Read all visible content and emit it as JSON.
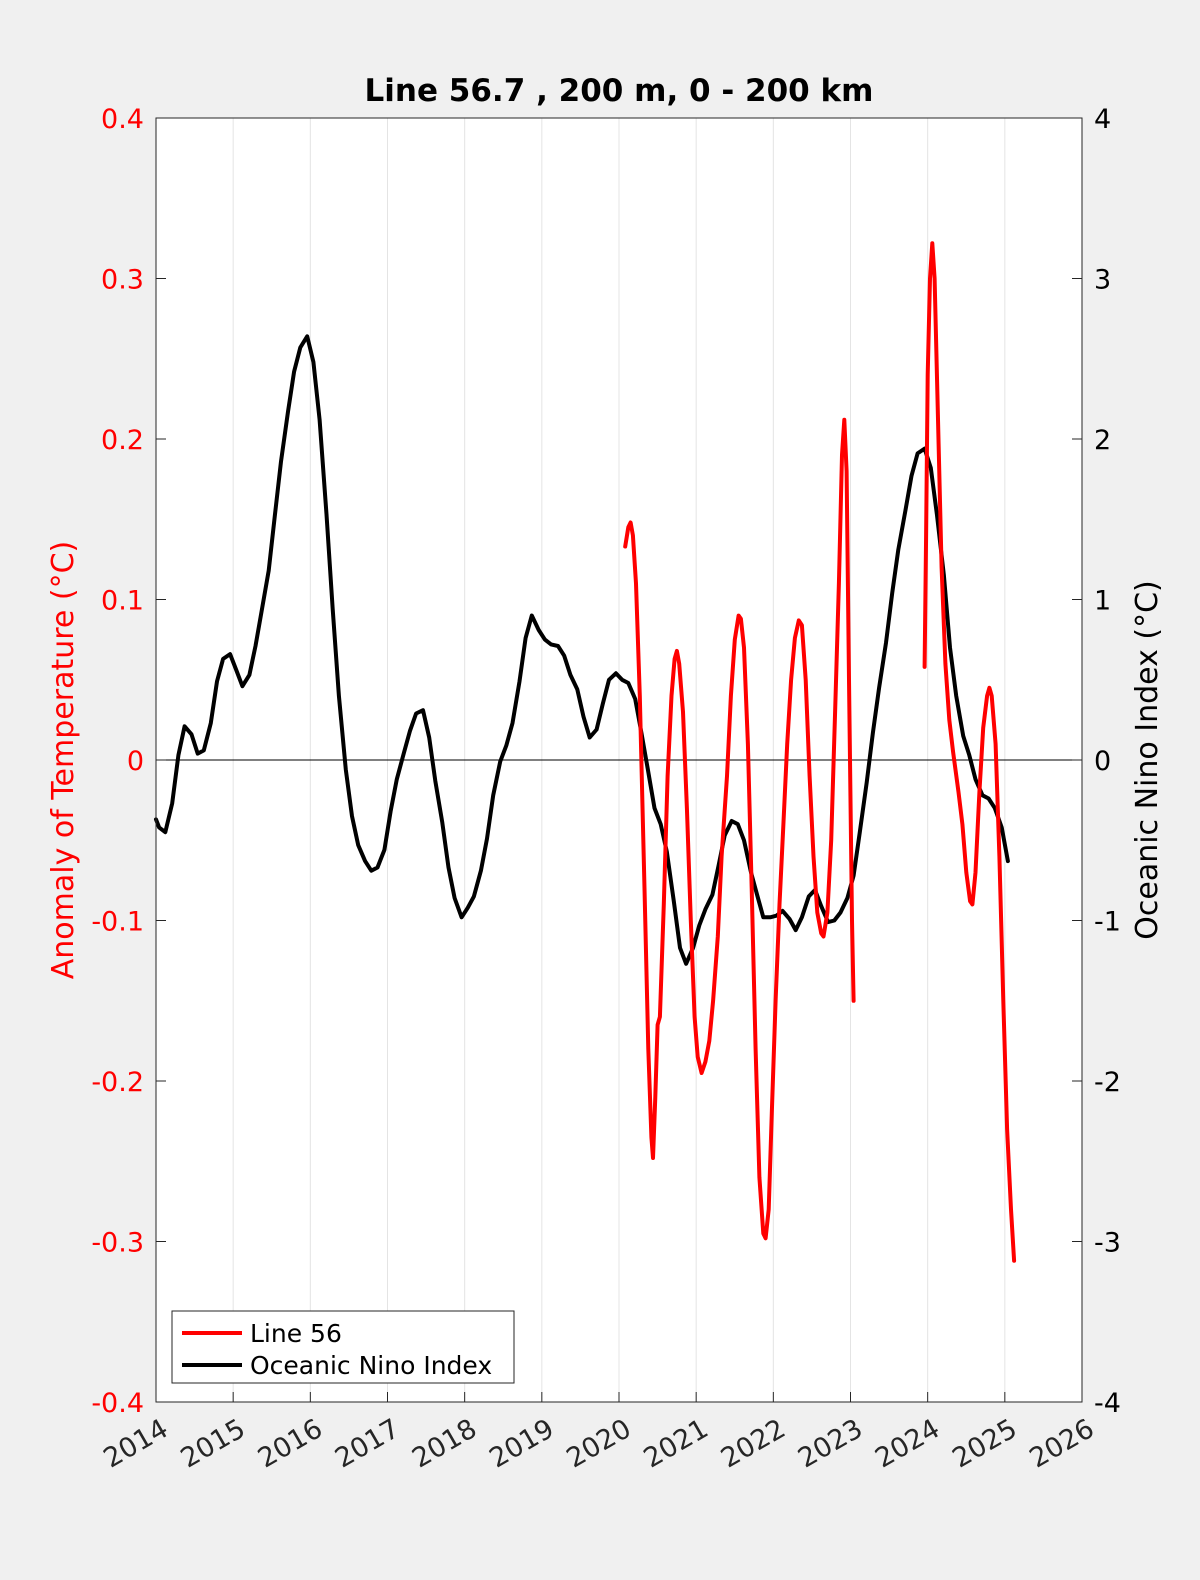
{
  "chart_data": {
    "type": "line",
    "title": "Line 56.7 , 200 m, 0 - 200 km",
    "xlim": [
      2014,
      2026
    ],
    "x_ticks": [
      "2014",
      "2015",
      "2016",
      "2017",
      "2018",
      "2019",
      "2020",
      "2021",
      "2022",
      "2023",
      "2024",
      "2025",
      "2026"
    ],
    "y_left": {
      "label": "Anomaly of Temperature (°C)",
      "lim": [
        -0.4,
        0.4
      ],
      "ticks": [
        "-0.4",
        "-0.3",
        "-0.2",
        "-0.1",
        "0",
        "0.1",
        "0.2",
        "0.3",
        "0.4"
      ],
      "color": "#ff0000"
    },
    "y_right": {
      "label": "Oceanic Nino Index (°C)",
      "lim": [
        -4,
        4
      ],
      "ticks": [
        "-4",
        "-3",
        "-2",
        "-1",
        "0",
        "1",
        "2",
        "3",
        "4"
      ],
      "color": "#000000"
    },
    "grid": "vertical",
    "zero_line": true,
    "legend": {
      "position": "bottom-left",
      "entries": [
        "Line 56",
        "Oceanic Nino Index"
      ]
    },
    "series": [
      {
        "name": "Line 56",
        "axis": "left",
        "color": "#ff0000",
        "segments": [
          [
            [
              2020.08,
              0.133
            ],
            [
              2020.12,
              0.145
            ],
            [
              2020.15,
              0.148
            ],
            [
              2020.18,
              0.14
            ],
            [
              2020.22,
              0.11
            ],
            [
              2020.27,
              0.04
            ],
            [
              2020.33,
              -0.08
            ],
            [
              2020.38,
              -0.18
            ],
            [
              2020.42,
              -0.235
            ],
            [
              2020.44,
              -0.248
            ],
            [
              2020.47,
              -0.21
            ],
            [
              2020.5,
              -0.165
            ],
            [
              2020.53,
              -0.16
            ],
            [
              2020.58,
              -0.09
            ],
            [
              2020.63,
              -0.01
            ],
            [
              2020.68,
              0.04
            ],
            [
              2020.72,
              0.063
            ],
            [
              2020.75,
              0.068
            ],
            [
              2020.78,
              0.06
            ],
            [
              2020.83,
              0.03
            ],
            [
              2020.88,
              -0.03
            ],
            [
              2020.93,
              -0.1
            ],
            [
              2020.98,
              -0.16
            ],
            [
              2021.02,
              -0.185
            ],
            [
              2021.07,
              -0.195
            ],
            [
              2021.12,
              -0.188
            ],
            [
              2021.17,
              -0.175
            ],
            [
              2021.22,
              -0.15
            ],
            [
              2021.28,
              -0.11
            ],
            [
              2021.33,
              -0.06
            ],
            [
              2021.4,
              -0.01
            ],
            [
              2021.45,
              0.04
            ],
            [
              2021.5,
              0.075
            ],
            [
              2021.55,
              0.09
            ],
            [
              2021.58,
              0.088
            ],
            [
              2021.62,
              0.07
            ],
            [
              2021.67,
              0.01
            ],
            [
              2021.72,
              -0.08
            ],
            [
              2021.77,
              -0.18
            ],
            [
              2021.82,
              -0.26
            ],
            [
              2021.87,
              -0.295
            ],
            [
              2021.9,
              -0.298
            ],
            [
              2021.94,
              -0.28
            ],
            [
              2021.98,
              -0.22
            ],
            [
              2022.03,
              -0.15
            ],
            [
              2022.08,
              -0.09
            ],
            [
              2022.13,
              -0.04
            ],
            [
              2022.18,
              0.01
            ],
            [
              2022.23,
              0.05
            ],
            [
              2022.28,
              0.076
            ],
            [
              2022.33,
              0.087
            ],
            [
              2022.37,
              0.084
            ],
            [
              2022.42,
              0.05
            ],
            [
              2022.47,
              -0.01
            ],
            [
              2022.52,
              -0.06
            ],
            [
              2022.57,
              -0.095
            ],
            [
              2022.62,
              -0.108
            ],
            [
              2022.65,
              -0.11
            ],
            [
              2022.7,
              -0.095
            ],
            [
              2022.75,
              -0.05
            ],
            [
              2022.8,
              0.03
            ],
            [
              2022.85,
              0.11
            ],
            [
              2022.89,
              0.19
            ],
            [
              2022.92,
              0.212
            ],
            [
              2022.95,
              0.18
            ],
            [
              2022.98,
              0.05
            ],
            [
              2023.02,
              -0.1
            ],
            [
              2023.04,
              -0.15
            ]
          ],
          [
            [
              2023.96,
              0.058
            ],
            [
              2023.98,
              0.14
            ],
            [
              2024.0,
              0.24
            ],
            [
              2024.03,
              0.3
            ],
            [
              2024.06,
              0.322
            ],
            [
              2024.09,
              0.3
            ],
            [
              2024.13,
              0.22
            ],
            [
              2024.18,
              0.12
            ],
            [
              2024.23,
              0.06
            ],
            [
              2024.28,
              0.025
            ],
            [
              2024.33,
              0.005
            ],
            [
              2024.4,
              -0.02
            ],
            [
              2024.45,
              -0.04
            ],
            [
              2024.5,
              -0.07
            ],
            [
              2024.55,
              -0.088
            ],
            [
              2024.58,
              -0.09
            ],
            [
              2024.62,
              -0.07
            ],
            [
              2024.67,
              -0.02
            ],
            [
              2024.72,
              0.02
            ],
            [
              2024.77,
              0.04
            ],
            [
              2024.8,
              0.045
            ],
            [
              2024.83,
              0.04
            ],
            [
              2024.88,
              0.01
            ],
            [
              2024.93,
              -0.06
            ],
            [
              2024.98,
              -0.15
            ],
            [
              2025.03,
              -0.23
            ],
            [
              2025.08,
              -0.28
            ],
            [
              2025.12,
              -0.312
            ]
          ]
        ]
      },
      {
        "name": "Oceanic Nino Index",
        "axis": "right",
        "color": "#000000",
        "segments": [
          [
            [
              2014.0,
              -0.37
            ],
            [
              2014.04,
              -0.42
            ],
            [
              2014.12,
              -0.45
            ],
            [
              2014.21,
              -0.27
            ],
            [
              2014.29,
              0.03
            ],
            [
              2014.37,
              0.21
            ],
            [
              2014.46,
              0.16
            ],
            [
              2014.54,
              0.04
            ],
            [
              2014.62,
              0.06
            ],
            [
              2014.71,
              0.23
            ],
            [
              2014.79,
              0.49
            ],
            [
              2014.87,
              0.63
            ],
            [
              2014.96,
              0.66
            ],
            [
              2015.04,
              0.56
            ],
            [
              2015.12,
              0.46
            ],
            [
              2015.21,
              0.53
            ],
            [
              2015.29,
              0.71
            ],
            [
              2015.37,
              0.93
            ],
            [
              2015.46,
              1.18
            ],
            [
              2015.54,
              1.52
            ],
            [
              2015.62,
              1.86
            ],
            [
              2015.71,
              2.17
            ],
            [
              2015.79,
              2.42
            ],
            [
              2015.87,
              2.57
            ],
            [
              2015.96,
              2.64
            ],
            [
              2016.04,
              2.48
            ],
            [
              2016.12,
              2.12
            ],
            [
              2016.21,
              1.53
            ],
            [
              2016.29,
              0.94
            ],
            [
              2016.37,
              0.4
            ],
            [
              2016.46,
              -0.06
            ],
            [
              2016.54,
              -0.35
            ],
            [
              2016.62,
              -0.53
            ],
            [
              2016.71,
              -0.63
            ],
            [
              2016.79,
              -0.69
            ],
            [
              2016.87,
              -0.67
            ],
            [
              2016.96,
              -0.56
            ],
            [
              2017.04,
              -0.32
            ],
            [
              2017.12,
              -0.12
            ],
            [
              2017.21,
              0.04
            ],
            [
              2017.29,
              0.18
            ],
            [
              2017.37,
              0.29
            ],
            [
              2017.46,
              0.31
            ],
            [
              2017.54,
              0.14
            ],
            [
              2017.62,
              -0.13
            ],
            [
              2017.71,
              -0.39
            ],
            [
              2017.79,
              -0.67
            ],
            [
              2017.87,
              -0.86
            ],
            [
              2017.96,
              -0.98
            ],
            [
              2018.04,
              -0.92
            ],
            [
              2018.12,
              -0.85
            ],
            [
              2018.21,
              -0.69
            ],
            [
              2018.29,
              -0.49
            ],
            [
              2018.37,
              -0.22
            ],
            [
              2018.46,
              -0.01
            ],
            [
              2018.54,
              0.09
            ],
            [
              2018.62,
              0.23
            ],
            [
              2018.71,
              0.49
            ],
            [
              2018.79,
              0.76
            ],
            [
              2018.87,
              0.9
            ],
            [
              2018.96,
              0.81
            ],
            [
              2019.04,
              0.75
            ],
            [
              2019.12,
              0.72
            ],
            [
              2019.21,
              0.71
            ],
            [
              2019.29,
              0.65
            ],
            [
              2019.37,
              0.53
            ],
            [
              2019.46,
              0.44
            ],
            [
              2019.54,
              0.27
            ],
            [
              2019.62,
              0.14
            ],
            [
              2019.71,
              0.19
            ],
            [
              2019.79,
              0.35
            ],
            [
              2019.87,
              0.5
            ],
            [
              2019.96,
              0.54
            ],
            [
              2020.04,
              0.5
            ],
            [
              2020.12,
              0.48
            ],
            [
              2020.21,
              0.38
            ],
            [
              2020.29,
              0.17
            ],
            [
              2020.37,
              -0.05
            ],
            [
              2020.46,
              -0.3
            ],
            [
              2020.54,
              -0.4
            ],
            [
              2020.62,
              -0.57
            ],
            [
              2020.71,
              -0.88
            ],
            [
              2020.79,
              -1.17
            ],
            [
              2020.87,
              -1.27
            ],
            [
              2020.96,
              -1.17
            ],
            [
              2021.04,
              -1.03
            ],
            [
              2021.12,
              -0.93
            ],
            [
              2021.21,
              -0.84
            ],
            [
              2021.29,
              -0.66
            ],
            [
              2021.37,
              -0.47
            ],
            [
              2021.46,
              -0.38
            ],
            [
              2021.54,
              -0.4
            ],
            [
              2021.62,
              -0.5
            ],
            [
              2021.71,
              -0.7
            ],
            [
              2021.79,
              -0.84
            ],
            [
              2021.87,
              -0.98
            ],
            [
              2021.96,
              -0.98
            ],
            [
              2022.04,
              -0.97
            ],
            [
              2022.12,
              -0.94
            ],
            [
              2022.21,
              -0.99
            ],
            [
              2022.29,
              -1.06
            ],
            [
              2022.37,
              -0.98
            ],
            [
              2022.46,
              -0.85
            ],
            [
              2022.54,
              -0.81
            ],
            [
              2022.62,
              -0.91
            ],
            [
              2022.71,
              -1.01
            ],
            [
              2022.79,
              -1.0
            ],
            [
              2022.87,
              -0.95
            ],
            [
              2022.96,
              -0.86
            ],
            [
              2023.04,
              -0.72
            ],
            [
              2023.12,
              -0.45
            ],
            [
              2023.21,
              -0.14
            ],
            [
              2023.29,
              0.17
            ],
            [
              2023.37,
              0.45
            ],
            [
              2023.46,
              0.73
            ],
            [
              2023.54,
              1.04
            ],
            [
              2023.62,
              1.31
            ],
            [
              2023.71,
              1.55
            ],
            [
              2023.79,
              1.77
            ],
            [
              2023.87,
              1.91
            ],
            [
              2023.96,
              1.94
            ],
            [
              2024.04,
              1.82
            ],
            [
              2024.12,
              1.53
            ],
            [
              2024.21,
              1.15
            ],
            [
              2024.29,
              0.7
            ],
            [
              2024.37,
              0.4
            ],
            [
              2024.46,
              0.15
            ],
            [
              2024.54,
              0.03
            ],
            [
              2024.62,
              -0.12
            ],
            [
              2024.71,
              -0.22
            ],
            [
              2024.79,
              -0.24
            ],
            [
              2024.87,
              -0.3
            ],
            [
              2024.96,
              -0.42
            ],
            [
              2025.04,
              -0.63
            ]
          ]
        ]
      }
    ]
  }
}
